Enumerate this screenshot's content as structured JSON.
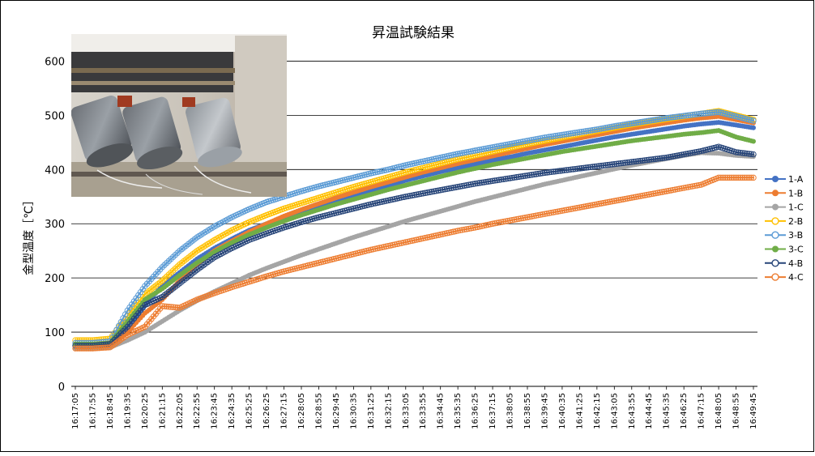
{
  "chart_data": {
    "type": "line",
    "title": "昇温試験結果",
    "ylabel": "金型温度［℃］",
    "xlabel": "",
    "ylim": [
      0,
      650
    ],
    "yticks": [
      0,
      100,
      200,
      300,
      400,
      500,
      600
    ],
    "ytick_labels": [
      "0",
      "100",
      "200",
      "300",
      "400",
      "500",
      "600"
    ],
    "xticks": [
      "16:17:05",
      "16:17:55",
      "16:18:45",
      "16:19:35",
      "16:20:25",
      "16:21:15",
      "16:22:05",
      "16:22:55",
      "16:23:45",
      "16:24:35",
      "16:25:25",
      "16:26:25",
      "16:27:15",
      "16:28:05",
      "16:28:55",
      "16:29:45",
      "16:30:35",
      "16:31:25",
      "16:32:15",
      "16:33:05",
      "16:33:55",
      "16:34:45",
      "16:35:35",
      "16:36:25",
      "16:37:15",
      "16:38:05",
      "16:38:55",
      "16:39:45",
      "16:40:35",
      "16:41:25",
      "16:42:15",
      "16:43:05",
      "16:43:55",
      "16:44:45",
      "16:45:35",
      "16:46:25",
      "16:47:15",
      "16:48:05",
      "16:48:55",
      "16:49:45"
    ],
    "grid": "horizontal",
    "legend_position": "right",
    "photo": "photo-inset",
    "series": [
      {
        "name": "1-A",
        "color": "#4472c4",
        "marker": "filled-circle",
        "values": [
          75,
          75,
          78,
          110,
          150,
          185,
          210,
          235,
          255,
          272,
          288,
          300,
          310,
          320,
          330,
          340,
          350,
          360,
          370,
          380,
          388,
          396,
          403,
          410,
          417,
          423,
          430,
          436,
          442,
          448,
          454,
          460,
          465,
          470,
          475,
          480,
          484,
          487,
          482,
          477
        ]
      },
      {
        "name": "1-B",
        "color": "#ed7d31",
        "marker": "filled-circle",
        "values": [
          72,
          72,
          75,
          100,
          135,
          160,
          195,
          225,
          250,
          268,
          285,
          300,
          314,
          326,
          337,
          348,
          358,
          368,
          377,
          386,
          395,
          403,
          411,
          418,
          425,
          432,
          439,
          446,
          452,
          458,
          464,
          470,
          476,
          481,
          486,
          491,
          495,
          498,
          492,
          486
        ]
      },
      {
        "name": "1-C",
        "color": "#a5a5a5",
        "marker": "filled-circle",
        "values": [
          70,
          70,
          72,
          85,
          100,
          120,
          140,
          158,
          175,
          190,
          205,
          218,
          230,
          242,
          253,
          264,
          275,
          285,
          295,
          305,
          314,
          323,
          332,
          341,
          349,
          357,
          365,
          373,
          380,
          387,
          394,
          401,
          408,
          414,
          420,
          426,
          431,
          430,
          426,
          424
        ]
      },
      {
        "name": "2-B",
        "color": "#ffc000",
        "marker": "open-circle",
        "values": [
          85,
          85,
          88,
          130,
          170,
          195,
          225,
          250,
          270,
          288,
          303,
          316,
          328,
          338,
          348,
          358,
          368,
          377,
          386,
          395,
          403,
          411,
          419,
          426,
          433,
          440,
          447,
          453,
          459,
          465,
          471,
          477,
          483,
          488,
          493,
          498,
          503,
          508,
          500,
          492
        ]
      },
      {
        "name": "3-B",
        "color": "#5b9bd5",
        "marker": "open-circle",
        "values": [
          80,
          80,
          83,
          140,
          185,
          220,
          250,
          275,
          295,
          312,
          327,
          340,
          350,
          360,
          369,
          377,
          385,
          393,
          400,
          408,
          415,
          422,
          429,
          435,
          441,
          447,
          453,
          459,
          464,
          469,
          474,
          480,
          485,
          490,
          495,
          499,
          503,
          506,
          498,
          490
        ]
      },
      {
        "name": "3-C",
        "color": "#70ad47",
        "marker": "filled-circle",
        "values": [
          78,
          78,
          80,
          120,
          160,
          180,
          205,
          228,
          248,
          265,
          280,
          293,
          305,
          316,
          326,
          336,
          345,
          354,
          363,
          371,
          379,
          387,
          395,
          402,
          409,
          415,
          421,
          427,
          433,
          438,
          443,
          448,
          453,
          457,
          461,
          465,
          468,
          472,
          460,
          452
        ]
      },
      {
        "name": "4-B",
        "color": "#264478",
        "marker": "open-circle",
        "values": [
          75,
          75,
          78,
          110,
          150,
          165,
          190,
          215,
          238,
          255,
          270,
          282,
          293,
          303,
          312,
          320,
          328,
          336,
          343,
          350,
          356,
          362,
          368,
          374,
          379,
          384,
          389,
          394,
          398,
          402,
          406,
          410,
          414,
          418,
          422,
          428,
          434,
          442,
          432,
          428
        ]
      },
      {
        "name": "4-C",
        "color": "#ed7d31",
        "marker": "open-circle",
        "values": [
          70,
          70,
          72,
          95,
          110,
          148,
          145,
          160,
          172,
          183,
          193,
          203,
          212,
          220,
          228,
          236,
          244,
          252,
          259,
          266,
          273,
          280,
          287,
          293,
          300,
          306,
          312,
          318,
          324,
          330,
          336,
          342,
          348,
          354,
          360,
          366,
          372,
          385,
          385,
          385
        ]
      }
    ]
  }
}
